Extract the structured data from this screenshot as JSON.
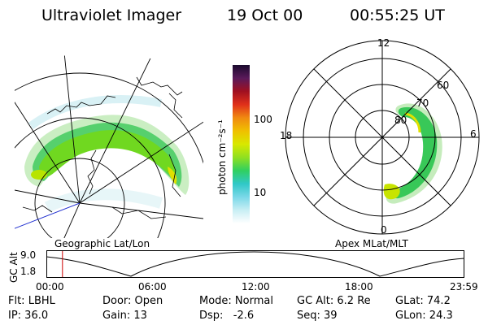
{
  "header": {
    "instrument": "Ultraviolet Imager",
    "date": "19 Oct 00",
    "time": "00:55:25 UT"
  },
  "geo_panel": {
    "label": "Geographic Lat/Lon"
  },
  "colorbar": {
    "unit_label": "photon cm⁻²s⁻¹",
    "tick_labels": [
      "100",
      "10"
    ],
    "colors": [
      "#1a0a2e",
      "#5a1a5a",
      "#a01020",
      "#e0301a",
      "#f08a10",
      "#f0c000",
      "#d8e800",
      "#90e020",
      "#30d060",
      "#30c8c8",
      "#7ad8e8",
      "#c8eef4",
      "#ffffff"
    ]
  },
  "polar_panel": {
    "label": "Apex MLat/MLT",
    "mlt_labels": {
      "top": "12",
      "left": "18",
      "right": "6",
      "bottom": "0"
    },
    "mlat_labels": [
      "60",
      "70",
      "80"
    ]
  },
  "altitude_plot": {
    "ylabel": "GC Alt",
    "y_ticks": [
      "9.0",
      "1.8"
    ],
    "x_ticks": [
      "00:00",
      "06:00",
      "12:00",
      "18:00",
      "23:59"
    ],
    "cursor_time": "00:55:25",
    "marker_color": "#cc0000"
  },
  "footer": {
    "row1": {
      "filter": "Flt: LBHL",
      "door": "Door: Open",
      "mode": "Mode: Normal",
      "gc_alt": "GC Alt: 6.2 Re",
      "glat": "GLat: 74.2"
    },
    "row2": {
      "ip": "IP: 36.0",
      "gain": "Gain: 13",
      "dsp": "Dsp:   -2.6",
      "seq": "Seq: 39",
      "glon": "GLon: 24.3"
    }
  }
}
